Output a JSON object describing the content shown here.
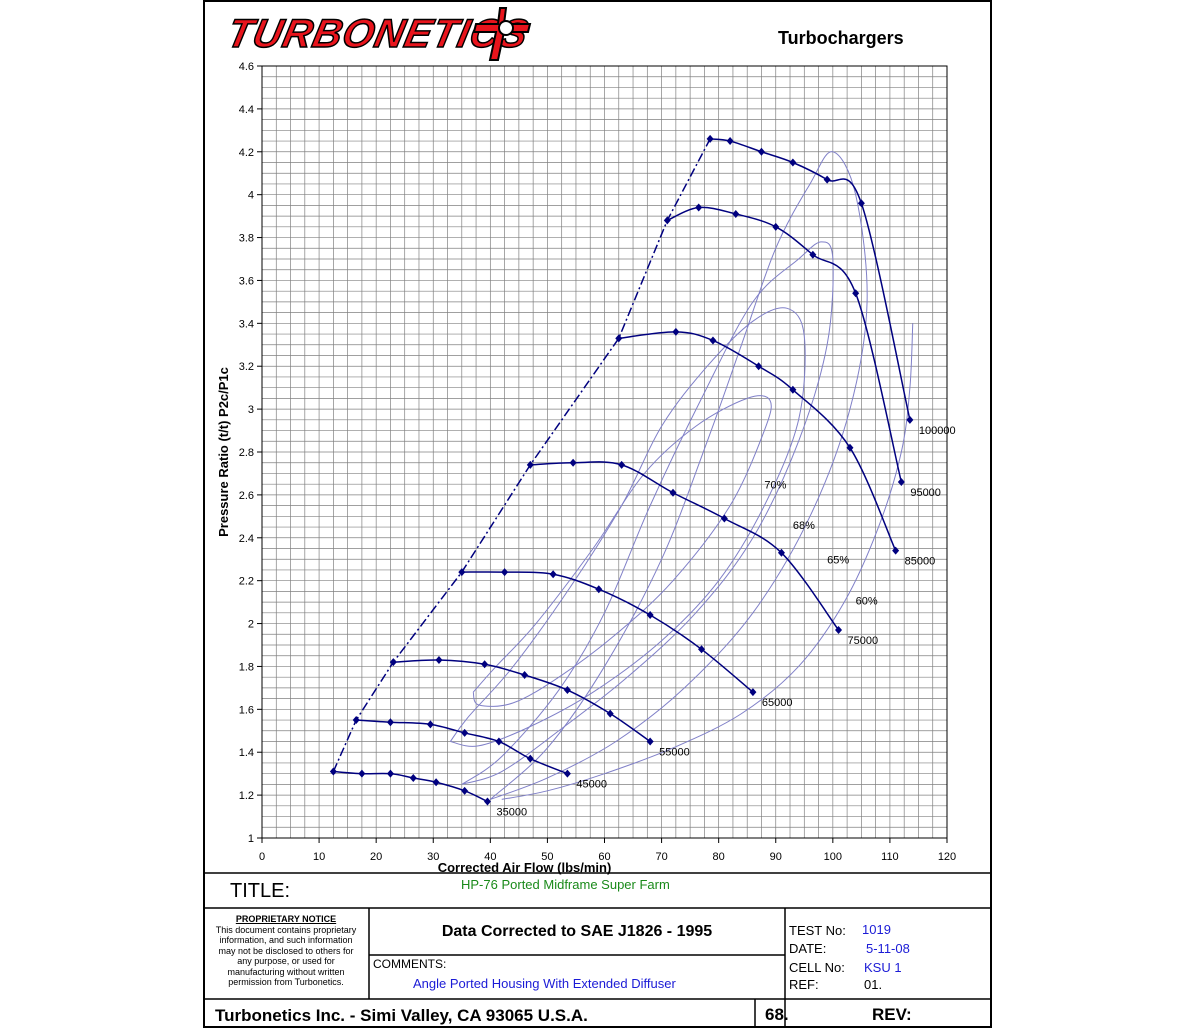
{
  "header": {
    "logo_text": "TURBONETICS",
    "title": "Turbochargers"
  },
  "colors": {
    "speed_line": "#00007f",
    "efficiency_island": "#8080c8",
    "surge_line": "#00007f",
    "grid": "#808080",
    "logo": "#e8141c"
  },
  "chart_data": {
    "type": "line",
    "title": "",
    "xlabel": "Corrected Air Flow (lbs/min)",
    "ylabel": "Pressure Ratio (t/t) P2c/P1c",
    "xlim": [
      0,
      120
    ],
    "ylim": [
      1,
      4.6
    ],
    "x_ticks": [
      "0",
      "10",
      "20",
      "30",
      "40",
      "50",
      "60",
      "70",
      "80",
      "90",
      "100",
      "110",
      "120"
    ],
    "y_ticks": [
      "1",
      "1.2",
      "1.4",
      "1.6",
      "1.8",
      "2",
      "2.2",
      "2.4",
      "2.6",
      "2.8",
      "3",
      "3.2",
      "3.4",
      "3.6",
      "3.8",
      "4",
      "4.2",
      "4.4",
      "4.6"
    ],
    "grid": true,
    "speed_lines": [
      {
        "label": "35000",
        "x": [
          12.5,
          17.5,
          22.5,
          26.5,
          30.5,
          35.5,
          39.5
        ],
        "y": [
          1.31,
          1.3,
          1.3,
          1.28,
          1.26,
          1.22,
          1.17
        ]
      },
      {
        "label": "45000",
        "x": [
          16.5,
          22.5,
          29.5,
          35.5,
          41.5,
          47.0,
          53.5
        ],
        "y": [
          1.55,
          1.54,
          1.53,
          1.49,
          1.45,
          1.37,
          1.3
        ]
      },
      {
        "label": "55000",
        "x": [
          23.0,
          31.0,
          39.0,
          46.0,
          53.5,
          61.0,
          68.0
        ],
        "y": [
          1.82,
          1.83,
          1.81,
          1.76,
          1.69,
          1.58,
          1.45
        ]
      },
      {
        "label": "65000",
        "x": [
          35.0,
          42.5,
          51.0,
          59.0,
          68.0,
          77.0,
          86.0
        ],
        "y": [
          2.24,
          2.24,
          2.23,
          2.16,
          2.04,
          1.88,
          1.68
        ]
      },
      {
        "label": "75000",
        "x": [
          47.0,
          54.5,
          63.0,
          72.0,
          81.0,
          91.0,
          101.0
        ],
        "y": [
          2.74,
          2.75,
          2.74,
          2.61,
          2.49,
          2.33,
          1.97
        ]
      },
      {
        "label": "85000",
        "x": [
          62.5,
          72.5,
          79.0,
          87.0,
          93.0,
          103.0,
          111.0
        ],
        "y": [
          3.33,
          3.36,
          3.32,
          3.2,
          3.09,
          2.82,
          2.34
        ]
      },
      {
        "label": "95000",
        "x": [
          71.0,
          76.5,
          83.0,
          90.0,
          96.5,
          104.0,
          112.0
        ],
        "y": [
          3.88,
          3.94,
          3.91,
          3.85,
          3.72,
          3.54,
          2.66
        ]
      },
      {
        "label": "100000",
        "x": [
          78.5,
          82.0,
          87.5,
          93.0,
          99.0,
          105.0,
          113.5
        ],
        "y": [
          4.26,
          4.25,
          4.2,
          4.15,
          4.07,
          3.96,
          2.95
        ]
      }
    ],
    "surge_line": {
      "x": [
        12.5,
        16.5,
        23.0,
        35.0,
        47.0,
        62.5,
        71.0,
        78.5
      ],
      "y": [
        1.31,
        1.55,
        1.82,
        2.24,
        2.74,
        3.33,
        3.88,
        4.26
      ]
    },
    "efficiency_islands": [
      {
        "label": "70%",
        "x": [
          37,
          41,
          48,
          58,
          67,
          76,
          85,
          89,
          88,
          82,
          72,
          62,
          52,
          44,
          38,
          37
        ],
        "y": [
          1.68,
          1.8,
          2.0,
          2.35,
          2.7,
          2.92,
          3.05,
          3.04,
          2.9,
          2.55,
          2.2,
          1.95,
          1.75,
          1.63,
          1.62,
          1.68
        ]
      },
      {
        "label": "68%",
        "x": [
          33,
          36,
          44,
          54,
          63,
          70,
          78,
          86,
          92,
          95,
          94,
          88,
          80,
          70,
          58,
          47,
          38,
          33
        ],
        "y": [
          1.45,
          1.56,
          1.8,
          2.17,
          2.55,
          2.92,
          3.2,
          3.41,
          3.47,
          3.34,
          2.95,
          2.55,
          2.2,
          1.92,
          1.68,
          1.52,
          1.43,
          1.45
        ]
      },
      {
        "label": "65%",
        "x": [
          35,
          42,
          52,
          60,
          68,
          77,
          86,
          94,
          98,
          100,
          99,
          94,
          86,
          76,
          64,
          52,
          42,
          35
        ],
        "y": [
          1.25,
          1.38,
          1.69,
          2.05,
          2.55,
          3.05,
          3.5,
          3.7,
          3.78,
          3.7,
          3.3,
          2.85,
          2.4,
          2.05,
          1.75,
          1.5,
          1.31,
          1.25
        ]
      },
      {
        "label": "60%",
        "x": [
          40,
          50,
          60,
          70,
          78,
          84,
          90,
          96,
          100,
          104,
          106,
          103,
          96,
          86,
          74,
          62,
          50,
          40
        ],
        "y": [
          1.18,
          1.42,
          1.8,
          2.3,
          2.85,
          3.3,
          3.75,
          4.05,
          4.2,
          4.0,
          3.5,
          3.0,
          2.5,
          2.05,
          1.7,
          1.45,
          1.28,
          1.18
        ]
      },
      {
        "label": "",
        "x": [
          114,
          113.5,
          112,
          108,
          102,
          94,
          84,
          72,
          60,
          50,
          42
        ],
        "y": [
          3.4,
          3.1,
          2.8,
          2.45,
          2.1,
          1.8,
          1.58,
          1.42,
          1.3,
          1.22,
          1.18
        ]
      }
    ],
    "island_labels": [
      {
        "text": "70%",
        "x": 88,
        "y": 2.63
      },
      {
        "text": "68%",
        "x": 93,
        "y": 2.44
      },
      {
        "text": "65%",
        "x": 99,
        "y": 2.28
      },
      {
        "text": "60%",
        "x": 104,
        "y": 2.09
      }
    ]
  },
  "title_block": {
    "title_label": "TITLE:",
    "title_value": "HP-76 Ported Midframe Super Farm",
    "notice_heading": "PROPRIETARY NOTICE",
    "notice_lines": [
      "This document contains proprietary",
      "information, and such information",
      "may not be disclosed to others for",
      "any purpose, or used for",
      "manufacturing without written",
      "permission from Turbonetics."
    ],
    "main_heading": "Data Corrected to SAE J1826 - 1995",
    "comments_label": "COMMENTS:",
    "comments_value": "Angle Ported Housing With Extended Diffuser",
    "test_label": "TEST No:",
    "test_value": "1019",
    "date_label": "DATE:",
    "date_value": "5-11-08",
    "cell_label": "CELL No:",
    "cell_value": "KSU 1",
    "ref_label": "REF:",
    "ref_value": "01.",
    "footer_company": "Turbonetics Inc. - Simi Valley, CA 93065 U.S.A.",
    "footer_page": "68.",
    "footer_rev": "REV:"
  }
}
